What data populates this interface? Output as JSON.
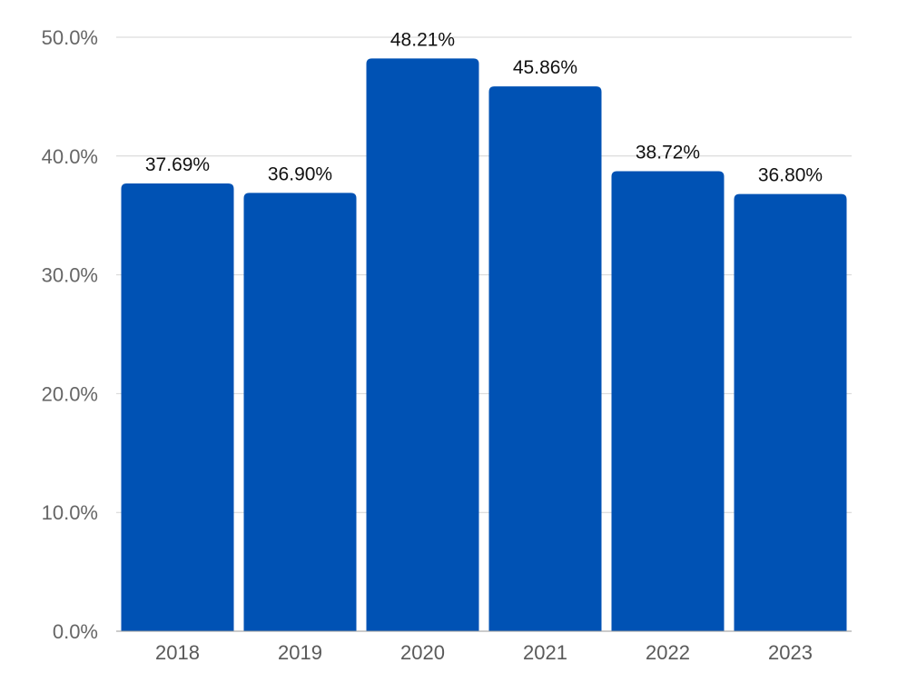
{
  "chart_data": {
    "type": "bar",
    "categories": [
      "2018",
      "2019",
      "2020",
      "2021",
      "2022",
      "2023"
    ],
    "values": [
      37.69,
      36.9,
      48.21,
      45.86,
      38.72,
      36.8
    ],
    "value_labels": [
      "37.69%",
      "36.90%",
      "48.21%",
      "45.86%",
      "38.72%",
      "36.80%"
    ],
    "title": "",
    "xlabel": "",
    "ylabel": "",
    "ylim": [
      0,
      50
    ],
    "yticks": [
      0,
      10,
      20,
      30,
      40,
      50
    ],
    "ytick_labels": [
      "0.0%",
      "10.0%",
      "20.0%",
      "30.0%",
      "40.0%",
      "50.0%"
    ],
    "grid": true,
    "legend": "none",
    "bar_color": "#0052b4"
  }
}
